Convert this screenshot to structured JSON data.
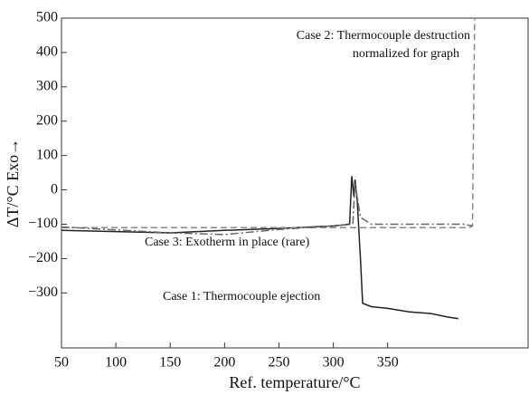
{
  "chart_data": {
    "type": "line",
    "x_label": "Ref. temperature/°C",
    "y_label": "ΔT/°C  Exo→",
    "annotations": [
      "Case 2: Thermocouple destruction",
      "normalized for graph",
      "Case 3: Exotherm in place (rare)",
      "Case 1: Thermocouple ejection"
    ],
    "xlim": [
      50,
      480
    ],
    "ylim": [
      -460,
      500
    ],
    "xticks": [
      50,
      100,
      150,
      200,
      250,
      300,
      350
    ],
    "yticks": [
      500,
      400,
      300,
      200,
      100,
      0,
      {
        "value": -100,
        "label": "−100"
      },
      {
        "value": -200,
        "label": "−200"
      },
      {
        "value": -300,
        "label": "−300"
      }
    ],
    "series": [
      {
        "name": "Case 1: Thermocouple ejection",
        "color": "#222222",
        "dash": "solid",
        "x": [
          50,
          150,
          200,
          250,
          300,
          315,
          317,
          319,
          320,
          322,
          325,
          327,
          335,
          350,
          370,
          390,
          405,
          415
        ],
        "values": [
          -118,
          -125,
          -118,
          -112,
          -105,
          -100,
          40,
          -20,
          30,
          -30,
          -200,
          -330,
          -340,
          -345,
          -355,
          -360,
          -370,
          -375
        ]
      },
      {
        "name": "Case 2: Thermocouple destruction",
        "color": "#888888",
        "dash": "dashed",
        "x": [
          50,
          425,
          428,
          430
        ],
        "values": [
          -110,
          -110,
          -105,
          500
        ]
      },
      {
        "name": "Case 3: Exotherm in place (rare)",
        "color": "#666666",
        "dash": "dashdot",
        "x": [
          50,
          150,
          200,
          250,
          300,
          318,
          320,
          325,
          335,
          420,
          428
        ],
        "values": [
          -108,
          -125,
          -130,
          -115,
          -105,
          -100,
          20,
          -80,
          -100,
          -100,
          -105
        ]
      }
    ]
  }
}
